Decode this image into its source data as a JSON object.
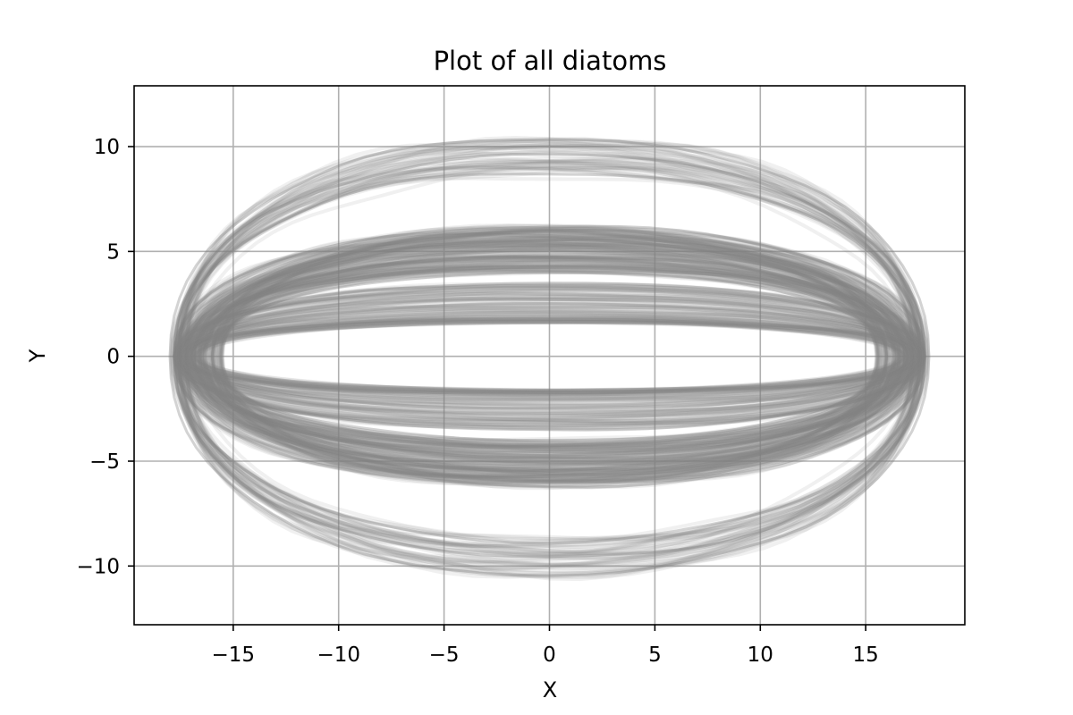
{
  "chart_data": {
    "type": "line",
    "title": "Plot of all diatoms",
    "xlabel": "X",
    "ylabel": "Y",
    "xlim": [
      -19.7,
      19.7
    ],
    "ylim": [
      -12.8,
      12.9
    ],
    "xticks": [
      -15,
      -10,
      -5,
      0,
      5,
      10,
      15
    ],
    "yticks": [
      -10,
      -5,
      0,
      5,
      10
    ],
    "xtick_labels": [
      "−15",
      "−10",
      "−5",
      "0",
      "5",
      "10",
      "15"
    ],
    "ytick_labels": [
      "−10",
      "−5",
      "0",
      "5",
      "10"
    ],
    "grid": true,
    "series_color": "#808080",
    "series_opacity": 0.12,
    "shape_families": [
      {
        "half_length": [
          17.0,
          18.0
        ],
        "half_width": [
          8.6,
          10.4
        ],
        "count": 45
      },
      {
        "half_length": [
          15.5,
          17.8
        ],
        "half_width": [
          4.0,
          6.2
        ],
        "count": 160
      },
      {
        "half_length": [
          16.5,
          17.8
        ],
        "half_width": [
          1.6,
          3.5
        ],
        "count": 90
      }
    ],
    "outline_samples": [
      {
        "half_length": 18.0,
        "half_width": 10.4
      },
      {
        "half_length": 17.8,
        "half_width": 9.6
      },
      {
        "half_length": 17.6,
        "half_width": 8.8
      },
      {
        "half_length": 17.8,
        "half_width": 6.2
      },
      {
        "half_length": 17.2,
        "half_width": 5.5
      },
      {
        "half_length": 16.8,
        "half_width": 4.8
      },
      {
        "half_length": 16.0,
        "half_width": 4.0
      },
      {
        "half_length": 17.5,
        "half_width": 3.5
      },
      {
        "half_length": 17.0,
        "half_width": 2.5
      },
      {
        "half_length": 16.8,
        "half_width": 1.6
      }
    ]
  }
}
